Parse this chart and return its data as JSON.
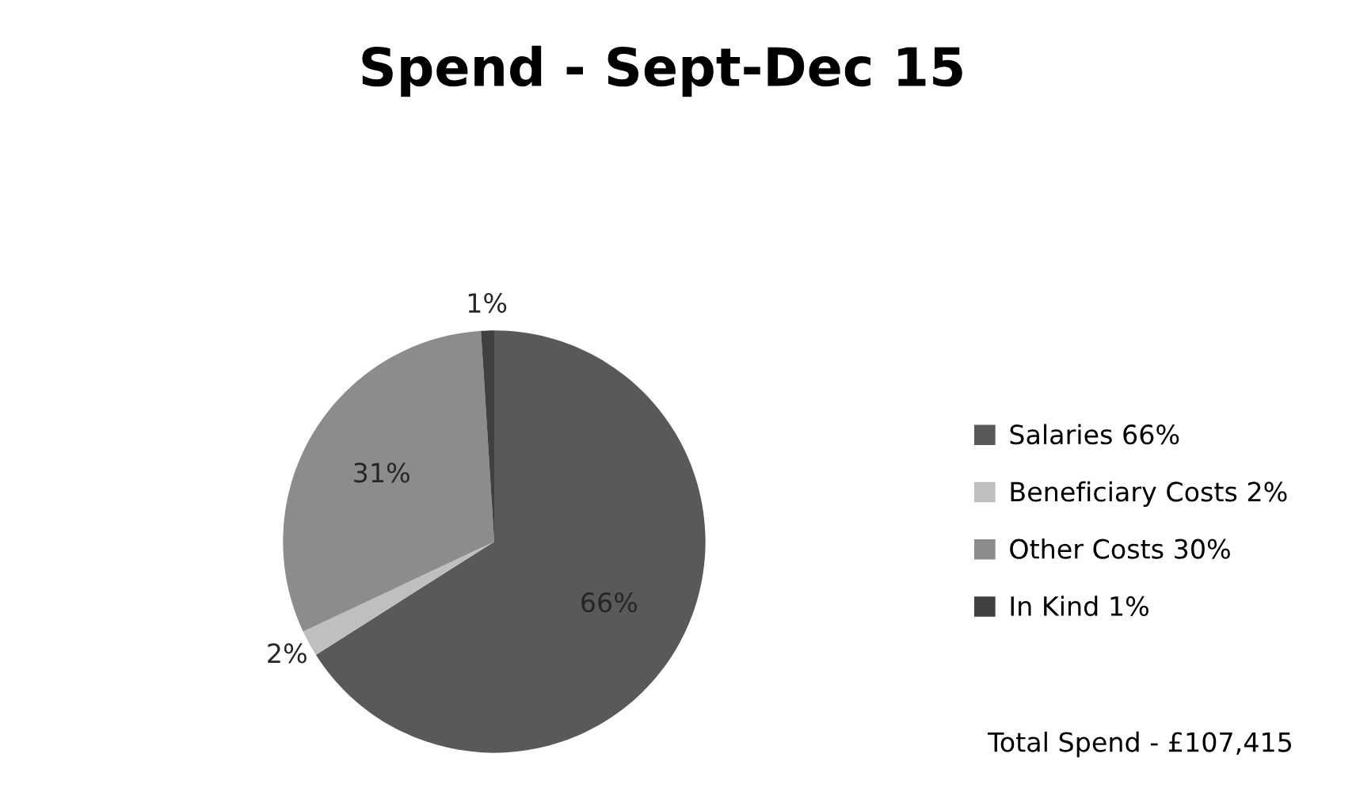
{
  "chart_data": {
    "type": "pie",
    "title": "Spend - Sept-Dec 15",
    "categories": [
      "Salaries 66%",
      "Beneficiary Costs 2%",
      "Other Costs 30%",
      "In Kind 1%"
    ],
    "values": [
      66,
      2,
      31,
      1
    ],
    "colors": [
      "#595959",
      "#bfbfbf",
      "#8c8c8c",
      "#404040"
    ],
    "value_labels": [
      "66%",
      "2%",
      "31%",
      "1%"
    ],
    "legend": "right",
    "annotations": [
      "Total Spend - £107,415"
    ]
  }
}
